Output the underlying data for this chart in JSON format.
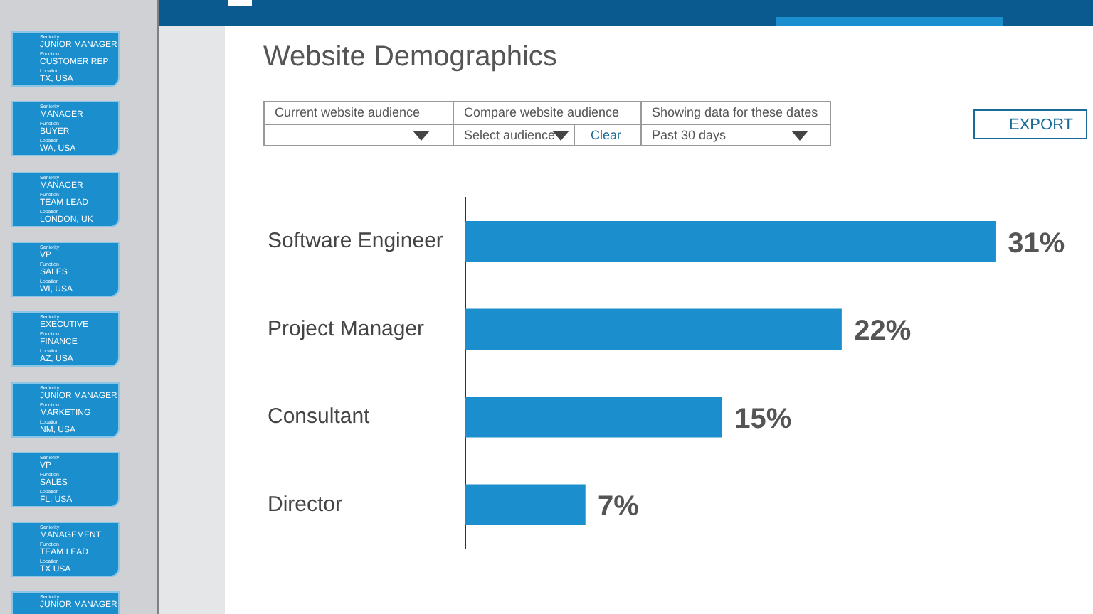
{
  "chart_data": {
    "type": "bar",
    "orientation": "horizontal",
    "title": "Website Demographics",
    "categories": [
      "Software Engineer",
      "Project Manager",
      "Consultant",
      "Director"
    ],
    "values": [
      31,
      22,
      15,
      7
    ],
    "color": "#1b8fce",
    "value_labels": [
      "31%",
      "22%",
      "15%",
      "7%"
    ],
    "legend": false,
    "annotations": [
      "Current website audience",
      "Compare website audience",
      "Showing data for these dates",
      "Select audience",
      "Clear",
      "Past 30 days",
      "EXPORT",
      "Seniority",
      "JUNIOR MANAGER",
      "Function",
      "CUSTOMER REP",
      "Location",
      "TX, USA",
      "Seniority",
      "MANAGER",
      "Function",
      "BUYER",
      "Location",
      "WA, USA",
      "Seniority",
      "MANAGER",
      "Function",
      "TEAM LEAD",
      "Location",
      "LONDON, UK",
      "Seniority",
      "VP",
      "Function",
      "SALES",
      "Location",
      "WI, USA",
      "Seniority",
      "EXECUTIVE",
      "Function",
      "FINANCE",
      "Location",
      "AZ, USA",
      "Seniority",
      "JUNIOR MANAGER",
      "Function",
      "MARKETING",
      "Location",
      "NM, USA",
      "Seniority",
      "VP",
      "Function",
      "SALES",
      "Location",
      "FL, USA",
      "Seniority",
      "MANAGEMENT",
      "Function",
      "TEAM LEAD",
      "Location",
      "TX USA",
      "Seniority",
      "JUNIOR MANAGER"
    ]
  }
}
